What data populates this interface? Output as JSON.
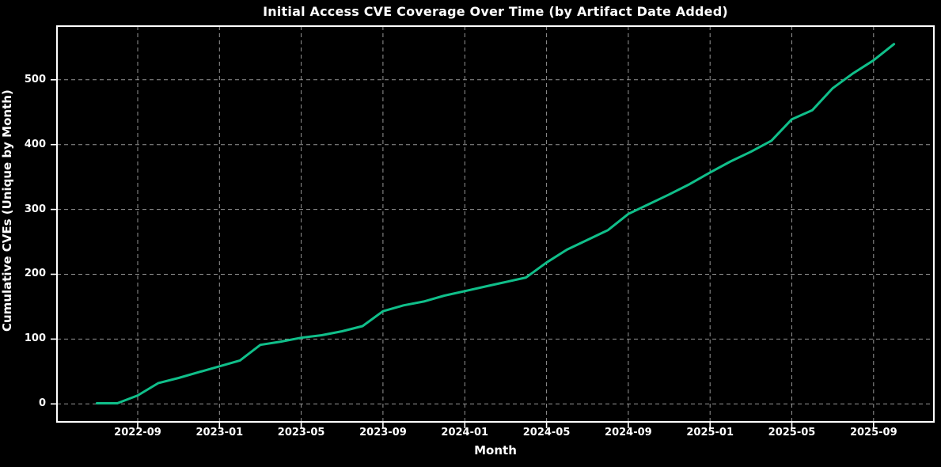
{
  "chart": {
    "title": "Initial Access CVE Coverage Over Time (by Artifact Date Added)",
    "xlabel": "Month",
    "ylabel": "Cumulative CVEs (Unique by Month)"
  },
  "colors": {
    "background": "#000000",
    "text": "#ffffff",
    "grid": "#a6a6a6",
    "spine": "#ffffff",
    "line": "#10bf8a"
  },
  "chart_data": {
    "type": "line",
    "title": "Initial Access CVE Coverage Over Time (by Artifact Date Added)",
    "xlabel": "Month",
    "ylabel": "Cumulative CVEs (Unique by Month)",
    "grid": true,
    "legend": false,
    "line_color": "#10bf8a",
    "line_width": 3,
    "x": [
      "2022-07",
      "2022-08",
      "2022-09",
      "2022-10",
      "2022-11",
      "2022-12",
      "2023-01",
      "2023-02",
      "2023-03",
      "2023-04",
      "2023-05",
      "2023-06",
      "2023-07",
      "2023-08",
      "2023-09",
      "2023-10",
      "2023-11",
      "2023-12",
      "2024-01",
      "2024-02",
      "2024-03",
      "2024-04",
      "2024-05",
      "2024-06",
      "2024-07",
      "2024-08",
      "2024-09",
      "2024-10",
      "2024-11",
      "2024-12",
      "2025-01",
      "2025-02",
      "2025-03",
      "2025-04",
      "2025-05",
      "2025-06",
      "2025-07",
      "2025-08",
      "2025-09",
      "2025-10"
    ],
    "values": [
      1,
      1,
      13,
      32,
      40,
      49,
      58,
      67,
      91,
      96,
      102,
      106,
      112,
      120,
      143,
      152,
      158,
      167,
      174,
      181,
      188,
      195,
      218,
      238,
      253,
      268,
      293,
      308,
      323,
      339,
      357,
      374,
      389,
      406,
      439,
      453,
      487,
      510,
      530,
      555
    ],
    "x_tick_labels": [
      "2022-09",
      "2023-01",
      "2023-05",
      "2023-09",
      "2024-01",
      "2024-05",
      "2024-09",
      "2025-01",
      "2025-05",
      "2025-09"
    ],
    "x_tick_indices": [
      2,
      6,
      10,
      14,
      18,
      22,
      26,
      30,
      34,
      38
    ],
    "y_ticks": [
      0,
      100,
      200,
      300,
      400,
      500
    ],
    "xlim": [
      -1.95,
      40.95
    ],
    "ylim": [
      -27.75,
      582.75
    ]
  }
}
